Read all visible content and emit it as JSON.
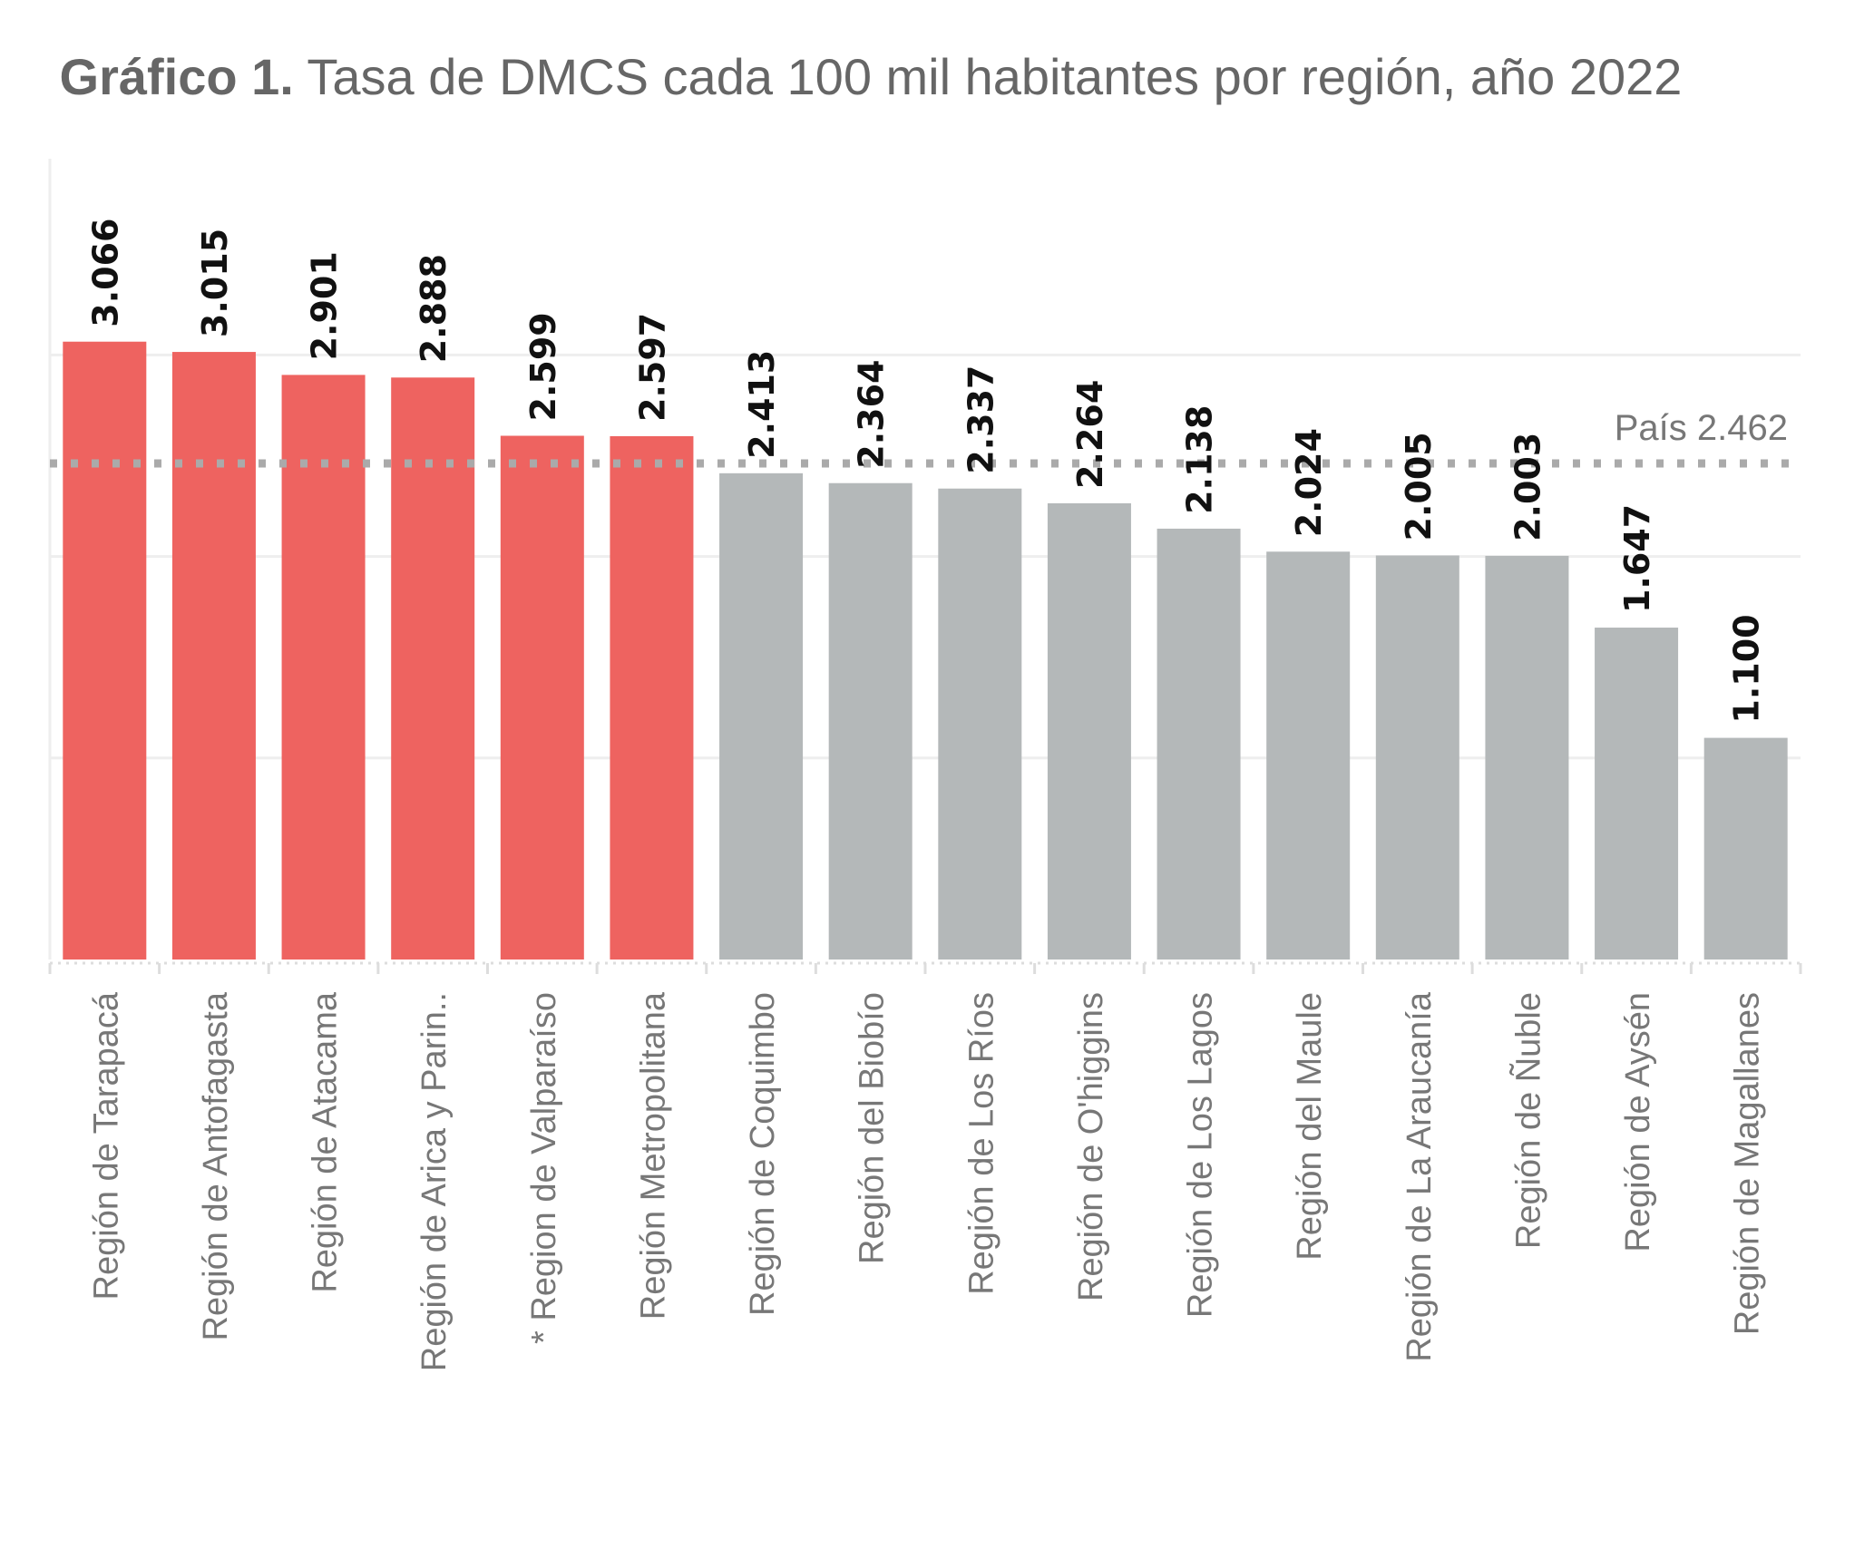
{
  "title": {
    "bold": "Gráfico 1.",
    "text": "Tasa de DMCS cada 100 mil habitantes por región, año 2022"
  },
  "colors": {
    "highlight": "#EE6360",
    "default": "#B4B8B9",
    "reference": "#AAAAAA",
    "grid": "#EEEEEE"
  },
  "chart_data": {
    "type": "bar",
    "title": "Tasa de DMCS cada 100 mil habitantes por región, año 2022",
    "xlabel": "",
    "ylabel": "",
    "ylim": [
      0,
      3000
    ],
    "grid": true,
    "y_gridlines": [
      1000,
      2000,
      3000
    ],
    "categories": [
      "Región de Tarapacá",
      "Región de Antofagasta",
      "Región de Atacama",
      "Región de Arica y Parin..",
      "* Region de Valparaíso",
      "Región Metropolitana",
      "Región de Coquimbo",
      "Región del Biobío",
      "Región de Los Ríos",
      "Región de O'higgins",
      "Región de Los Lagos",
      "Región del Maule",
      "Región de La Araucanía",
      "Región de Ñuble",
      "Región de Aysén",
      "Región de Magallanes"
    ],
    "values": [
      3066,
      3015,
      2901,
      2888,
      2599,
      2597,
      2413,
      2364,
      2337,
      2264,
      2138,
      2024,
      2005,
      2003,
      1647,
      1100
    ],
    "value_labels": [
      "3.066",
      "3.015",
      "2.901",
      "2.888",
      "2.599",
      "2.597",
      "2.413",
      "2.364",
      "2.337",
      "2.264",
      "2.138",
      "2.024",
      "2.005",
      "2.003",
      "1.647",
      "1.100"
    ],
    "highlighted": [
      true,
      true,
      true,
      true,
      true,
      true,
      false,
      false,
      false,
      false,
      false,
      false,
      false,
      false,
      false,
      false
    ],
    "reference_line": {
      "value": 2462,
      "label": "País 2.462"
    }
  }
}
